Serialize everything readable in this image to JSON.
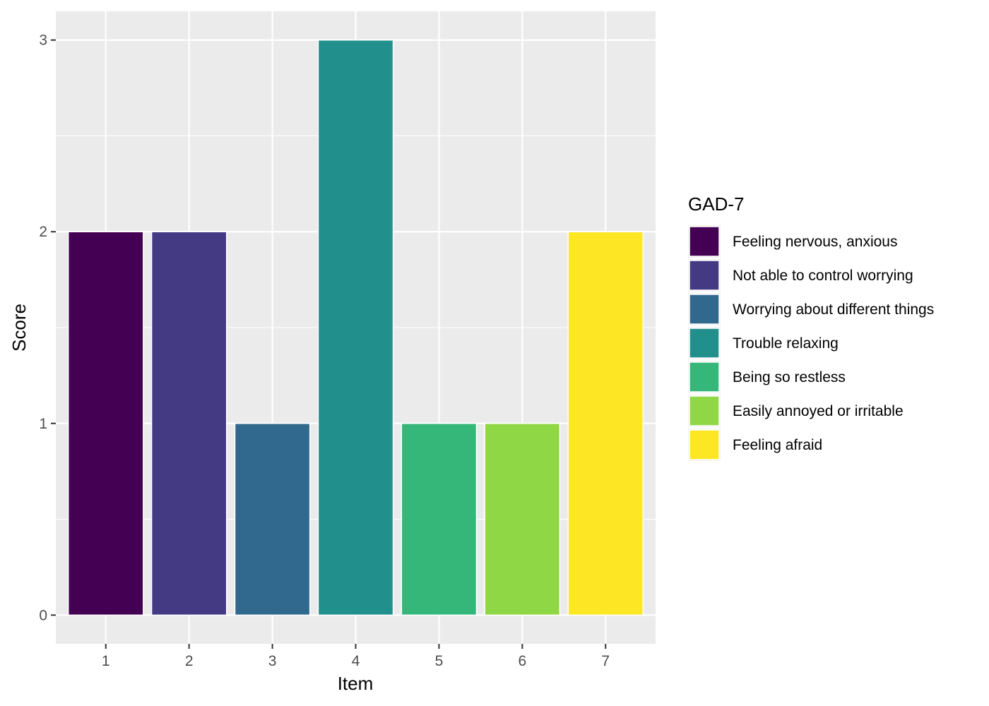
{
  "chart_data": {
    "type": "bar",
    "title": "",
    "xlabel": "Item",
    "ylabel": "Score",
    "categories": [
      "1",
      "2",
      "3",
      "4",
      "5",
      "6",
      "7"
    ],
    "values": [
      2,
      2,
      1,
      3,
      1,
      1,
      2
    ],
    "ylim": [
      -0.15,
      3.15
    ],
    "yticks": [
      0,
      1,
      2,
      3
    ],
    "grid": true,
    "legend": {
      "title": "GAD-7",
      "placement": "right",
      "entries": [
        {
          "label": "Feeling nervous, anxious",
          "color": "#440154"
        },
        {
          "label": "Not able to control worrying",
          "color": "#443A83"
        },
        {
          "label": "Worrying about different things",
          "color": "#31688E"
        },
        {
          "label": "Trouble relaxing",
          "color": "#21908C"
        },
        {
          "label": "Being so restless",
          "color": "#35B779"
        },
        {
          "label": "Easily annoyed or irritable",
          "color": "#8FD744"
        },
        {
          "label": "Feeling afraid",
          "color": "#FDE725"
        }
      ]
    },
    "panel_color": "#EBEBEB",
    "grid_color": "#FFFFFF"
  }
}
